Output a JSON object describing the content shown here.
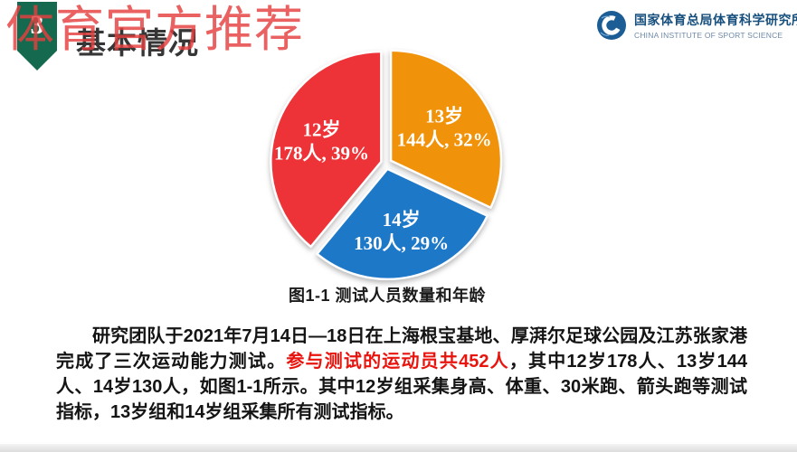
{
  "watermark": "体育官方推荐",
  "header": {
    "section_number": "3",
    "title": "基本情况",
    "logo": {
      "name_cn": "国家体育总局体育科学研究所",
      "name_en": "CHINA INSTITUTE OF SPORT SCIENCE"
    }
  },
  "colors": {
    "badge_green": "#15694e",
    "logo_blue": "#1d5d95",
    "logo_text_blue": "#164f7d",
    "watermark_red": "#e53e3e",
    "highlight_red": "#e8140e",
    "slice_red": "#ee3338",
    "slice_orange": "#f0930b",
    "slice_blue": "#1e78c8"
  },
  "chart_data": {
    "type": "pie",
    "title": "图1-1 测试人员数量和年龄",
    "total": 452,
    "unit": "人",
    "start_angle_deg": 0,
    "clockwise": true,
    "legend": "none",
    "labels_position": "inside",
    "slices": [
      {
        "category": "13岁",
        "people": 144,
        "pct": 32,
        "color": "#f0930b",
        "label_line1": "13岁",
        "label_line2": "144人, 32%"
      },
      {
        "category": "14岁",
        "people": 130,
        "pct": 29,
        "color": "#1e78c8",
        "label_line1": "14岁",
        "label_line2": "130人, 29%"
      },
      {
        "category": "12岁",
        "people": 178,
        "pct": 39,
        "color": "#ee3338",
        "label_line1": "12岁",
        "label_line2": "178人, 39%"
      }
    ]
  },
  "body": {
    "part1": "研究团队于2021年7月14日—18日在上海根宝基地、厚湃尔足球公园及江苏张家港完成了三次运动能力测试。",
    "highlight": "参与测试的运动员共452人",
    "part2": "，其中12岁178人、13岁144人、14岁130人，如图1-1所示。其中12岁组采集身高、体重、30米跑、箭头跑等测试指标，13岁组和14岁组采集所有测试指标。",
    "highlight_color": "#e8140e"
  }
}
